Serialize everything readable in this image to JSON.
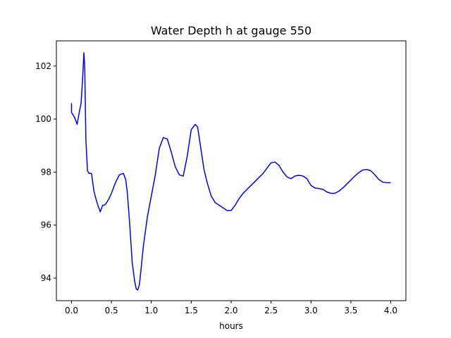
{
  "chart_data": {
    "type": "line",
    "title": "Water Depth h at gauge 550",
    "xlabel": "hours",
    "ylabel": "",
    "xlim": [
      -0.19,
      4.19
    ],
    "ylim": [
      93.15,
      102.95
    ],
    "xticks": [
      0.0,
      0.5,
      1.0,
      1.5,
      2.0,
      2.5,
      3.0,
      3.5,
      4.0
    ],
    "xtick_labels": [
      "0.0",
      "0.5",
      "1.0",
      "1.5",
      "2.0",
      "2.5",
      "3.0",
      "3.5",
      "4.0"
    ],
    "yticks": [
      94,
      96,
      98,
      100,
      102
    ],
    "ytick_labels": [
      "94",
      "96",
      "98",
      "100",
      "102"
    ],
    "grid": false,
    "series": [
      {
        "color": "#0000ff",
        "x": [
          0.0,
          0.0,
          0.01,
          0.04,
          0.07,
          0.1,
          0.12,
          0.14,
          0.155,
          0.165,
          0.18,
          0.2,
          0.22,
          0.25,
          0.28,
          0.3,
          0.33,
          0.36,
          0.39,
          0.41,
          0.43,
          0.47,
          0.5,
          0.55,
          0.6,
          0.65,
          0.68,
          0.7,
          0.73,
          0.76,
          0.79,
          0.81,
          0.83,
          0.85,
          0.87,
          0.9,
          0.95,
          1.0,
          1.05,
          1.1,
          1.15,
          1.2,
          1.25,
          1.3,
          1.35,
          1.4,
          1.45,
          1.5,
          1.55,
          1.58,
          1.62,
          1.66,
          1.7,
          1.75,
          1.8,
          1.85,
          1.9,
          1.95,
          2.0,
          2.05,
          2.1,
          2.15,
          2.2,
          2.3,
          2.4,
          2.45,
          2.5,
          2.55,
          2.6,
          2.65,
          2.7,
          2.75,
          2.8,
          2.85,
          2.9,
          2.95,
          3.0,
          3.05,
          3.1,
          3.15,
          3.2,
          3.25,
          3.3,
          3.35,
          3.4,
          3.45,
          3.5,
          3.55,
          3.6,
          3.65,
          3.7,
          3.75,
          3.8,
          3.85,
          3.9,
          3.95,
          4.0
        ],
        "y": [
          100.6,
          100.25,
          100.2,
          100.05,
          99.8,
          100.3,
          100.6,
          101.6,
          102.5,
          102.0,
          99.2,
          98.05,
          97.95,
          97.95,
          97.3,
          97.05,
          96.75,
          96.5,
          96.75,
          96.75,
          96.8,
          97.0,
          97.2,
          97.6,
          97.9,
          97.95,
          97.7,
          97.2,
          96.0,
          94.6,
          93.9,
          93.6,
          93.55,
          93.75,
          94.3,
          95.2,
          96.3,
          97.1,
          97.9,
          98.9,
          99.3,
          99.25,
          98.75,
          98.2,
          97.9,
          97.85,
          98.6,
          99.6,
          99.8,
          99.7,
          98.9,
          98.1,
          97.6,
          97.1,
          96.85,
          96.75,
          96.65,
          96.55,
          96.55,
          96.75,
          97.0,
          97.2,
          97.35,
          97.65,
          97.95,
          98.15,
          98.35,
          98.38,
          98.25,
          98.0,
          97.82,
          97.75,
          97.85,
          97.88,
          97.85,
          97.75,
          97.5,
          97.4,
          97.38,
          97.35,
          97.25,
          97.2,
          97.2,
          97.28,
          97.4,
          97.55,
          97.7,
          97.85,
          97.98,
          98.08,
          98.1,
          98.05,
          97.9,
          97.72,
          97.62,
          97.6,
          97.6
        ]
      }
    ]
  }
}
